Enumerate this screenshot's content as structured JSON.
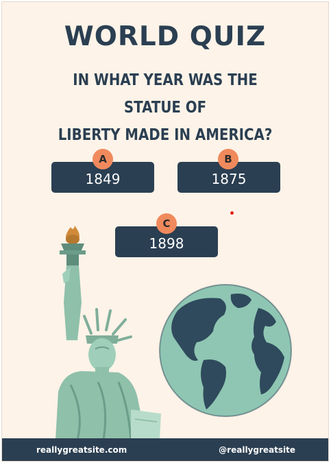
{
  "quiz": {
    "title": "WORLD QUIZ",
    "question_line1": "IN WHAT YEAR WAS THE STATUE OF",
    "question_line2": "LIBERTY MADE IN AMERICA?"
  },
  "answers": [
    {
      "letter": "A",
      "value": "1849"
    },
    {
      "letter": "B",
      "value": "1875"
    },
    {
      "letter": "C",
      "value": "1898"
    }
  ],
  "footer": {
    "website": "reallygreatsite.com",
    "handle": "@reallygreatsite"
  },
  "colors": {
    "background": "#fdf3e8",
    "navy": "#2b3f52",
    "badge": "#f08a5d",
    "statue": "#8fc0aa",
    "ocean": "#8fc6b3",
    "land": "#2f4a5c"
  }
}
